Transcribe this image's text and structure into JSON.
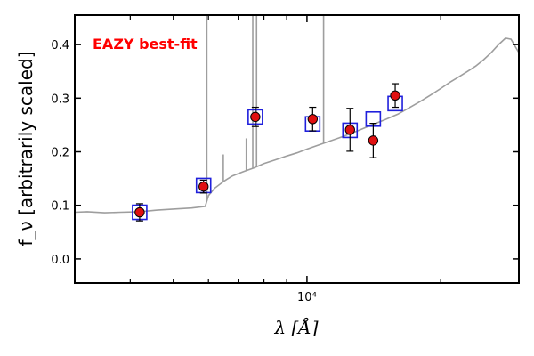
{
  "chart_data": {
    "type": "scatter",
    "annotation": "EAZY best-fit",
    "xlabel": "λ [Å]",
    "ylabel": "f_ν [arbitrarily scaled]",
    "xscale": "log",
    "xlim": [
      3000,
      30000
    ],
    "ylim": [
      -0.045,
      0.455
    ],
    "yticks": [
      0.0,
      0.1,
      0.2,
      0.3,
      0.4
    ],
    "ytick_labels": [
      "0.0",
      "0.1",
      "0.2",
      "0.3",
      "0.4"
    ],
    "xtick_labels": [
      "10⁴"
    ],
    "colors": {
      "model": "#9e9e9e",
      "model_flux_box": "#1f1fdc",
      "observed": "#e01010",
      "annotation": "#ff0000"
    },
    "observed": [
      {
        "x": 4200,
        "y": 0.087,
        "err": 0.016
      },
      {
        "x": 5850,
        "y": 0.135,
        "err": 0.012
      },
      {
        "x": 7650,
        "y": 0.265,
        "err": 0.018
      },
      {
        "x": 10300,
        "y": 0.261,
        "err": 0.022
      },
      {
        "x": 12500,
        "y": 0.241,
        "err": 0.04
      },
      {
        "x": 14100,
        "y": 0.221,
        "err": 0.032
      },
      {
        "x": 15800,
        "y": 0.305,
        "err": 0.022
      }
    ],
    "model_flux": [
      {
        "x": 4200,
        "y": 0.087
      },
      {
        "x": 5850,
        "y": 0.137
      },
      {
        "x": 7650,
        "y": 0.265
      },
      {
        "x": 10300,
        "y": 0.252
      },
      {
        "x": 12500,
        "y": 0.24
      },
      {
        "x": 14100,
        "y": 0.261
      },
      {
        "x": 15800,
        "y": 0.29
      }
    ],
    "model_continuum": [
      [
        3000,
        0.087
      ],
      [
        3200,
        0.088
      ],
      [
        3500,
        0.086
      ],
      [
        3800,
        0.087
      ],
      [
        4200,
        0.088
      ],
      [
        4600,
        0.091
      ],
      [
        5000,
        0.093
      ],
      [
        5500,
        0.095
      ],
      [
        5900,
        0.098
      ],
      [
        6000,
        0.118
      ],
      [
        6200,
        0.132
      ],
      [
        6500,
        0.145
      ],
      [
        6800,
        0.155
      ],
      [
        7200,
        0.163
      ],
      [
        7600,
        0.17
      ],
      [
        8000,
        0.178
      ],
      [
        8500,
        0.185
      ],
      [
        9000,
        0.192
      ],
      [
        9500,
        0.198
      ],
      [
        10000,
        0.205
      ],
      [
        11000,
        0.217
      ],
      [
        12000,
        0.228
      ],
      [
        13000,
        0.239
      ],
      [
        14000,
        0.25
      ],
      [
        15000,
        0.26
      ],
      [
        16000,
        0.27
      ],
      [
        17000,
        0.282
      ],
      [
        18000,
        0.294
      ],
      [
        19000,
        0.306
      ],
      [
        20000,
        0.318
      ],
      [
        21000,
        0.33
      ],
      [
        22000,
        0.34
      ],
      [
        23000,
        0.35
      ],
      [
        24000,
        0.36
      ],
      [
        25000,
        0.372
      ],
      [
        26000,
        0.385
      ],
      [
        27000,
        0.4
      ],
      [
        28000,
        0.412
      ],
      [
        28800,
        0.41
      ],
      [
        29500,
        0.395
      ],
      [
        30000,
        0.385
      ]
    ],
    "emission_lines": [
      {
        "x": 5950,
        "peak": 0.455
      },
      {
        "x": 6480,
        "peak": 0.195
      },
      {
        "x": 7300,
        "peak": 0.225
      },
      {
        "x": 7550,
        "peak": 0.455
      },
      {
        "x": 7700,
        "peak": 0.455
      },
      {
        "x": 10900,
        "peak": 0.455
      }
    ]
  }
}
